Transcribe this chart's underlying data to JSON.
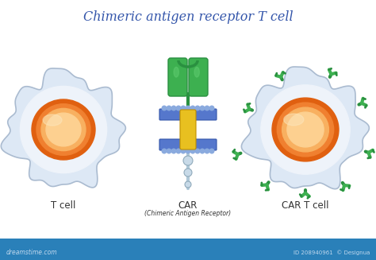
{
  "title": "Chimeric antigen receptor T cell",
  "title_color": "#3355aa",
  "title_fontsize": 11.5,
  "label_tcell": "T cell",
  "label_car": "CAR",
  "label_car_sub": "(Chimeric Antigen Receptor)",
  "label_cartcell": "CAR T cell",
  "watermark": "dreamstime.com",
  "watermark_id": "ID 208940961  © Designua",
  "bottom_bar_color": "#2a80b9",
  "label_color": "#333333",
  "cell_bg": "#dde8f5",
  "cell_edge": "#aabbd0",
  "cell_inner": "#eef3fa",
  "nucleus_dark": "#e06010",
  "nucleus_mid": "#f08030",
  "nucleus_light": "#f8b060",
  "nucleus_bright": "#fdd090",
  "car_green_dark": "#2a9040",
  "car_green": "#3db050",
  "car_green_light": "#60cc70",
  "car_membrane": "#5577cc",
  "car_membrane_light": "#8aaade",
  "car_yellow": "#e8c020",
  "car_yellow_dark": "#c09000",
  "tail_color": "#b0c8d8",
  "tail_dark": "#8099aa",
  "bead_color": "#c8dae8",
  "bead_edge": "#90aabb"
}
